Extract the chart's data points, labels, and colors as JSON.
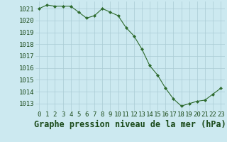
{
  "x": [
    0,
    1,
    2,
    3,
    4,
    5,
    6,
    7,
    8,
    9,
    10,
    11,
    12,
    13,
    14,
    15,
    16,
    17,
    18,
    19,
    20,
    21,
    22,
    23
  ],
  "y": [
    1021.0,
    1021.3,
    1021.2,
    1021.2,
    1021.2,
    1020.7,
    1020.2,
    1020.4,
    1021.0,
    1020.7,
    1020.4,
    1019.4,
    1018.7,
    1017.6,
    1016.2,
    1015.4,
    1014.3,
    1013.4,
    1012.8,
    1013.0,
    1013.2,
    1013.3,
    1013.8,
    1014.3
  ],
  "line_color": "#2d6a2d",
  "marker_color": "#2d6a2d",
  "bg_color": "#cce9f0",
  "grid_color": "#aaccd4",
  "text_color": "#1a4a1a",
  "xlabel": "Graphe pression niveau de la mer (hPa)",
  "ylim_min": 1012.4,
  "ylim_max": 1021.6,
  "tick_fontsize": 6.5,
  "label_fontsize": 8.5
}
